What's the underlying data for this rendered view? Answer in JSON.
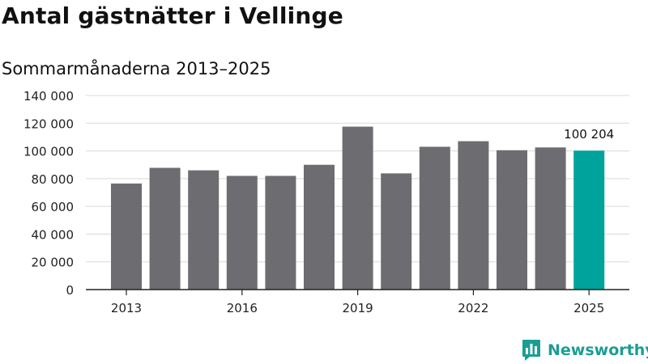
{
  "title": "Antal gästnätter i Vellinge",
  "subtitle": "Sommarmånaderna 2013–2025",
  "brand": {
    "name": "Newsworthy"
  },
  "colors": {
    "bar": "#6d6c71",
    "highlight": "#00a39b",
    "grid": "#d9d9d9",
    "axis": "#222222",
    "brand": "#1a9e94"
  },
  "chart_data": {
    "type": "bar",
    "categories": [
      "2013",
      "2014",
      "2015",
      "2016",
      "2017",
      "2018",
      "2019",
      "2020",
      "2021",
      "2022",
      "2023",
      "2024",
      "2025"
    ],
    "values": [
      76500,
      87800,
      86000,
      82000,
      82000,
      90000,
      117500,
      83800,
      103000,
      107000,
      100500,
      102500,
      100204
    ],
    "x_tick_labels": [
      "2013",
      "2016",
      "2019",
      "2022",
      "2025"
    ],
    "y_ticks": [
      0,
      20000,
      40000,
      60000,
      80000,
      100000,
      120000,
      140000
    ],
    "y_tick_labels": [
      "0",
      "20 000",
      "40 000",
      "60 000",
      "80 000",
      "100 000",
      "120 000",
      "140 000"
    ],
    "ylim": [
      0,
      140000
    ],
    "highlight": {
      "category": "2025",
      "label": "100 204"
    },
    "grid": true,
    "legend": false
  }
}
